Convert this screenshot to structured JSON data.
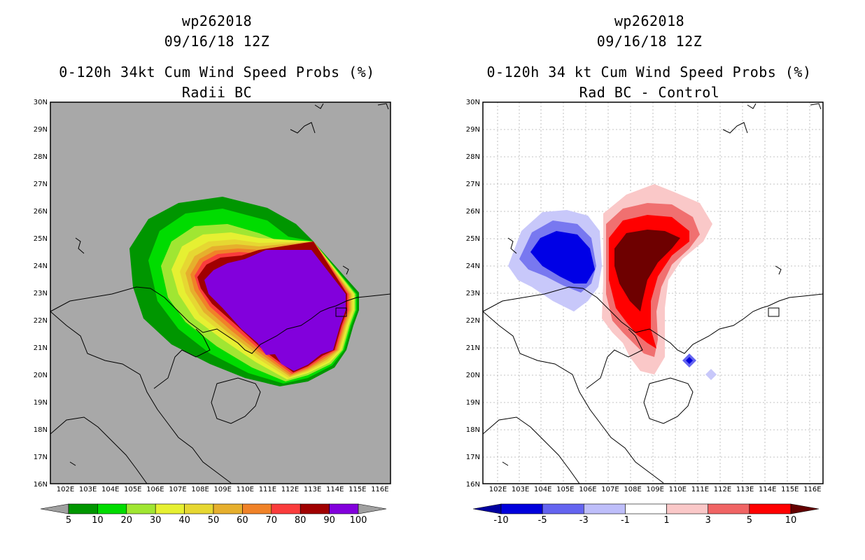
{
  "left_panel": {
    "storm_id": "wp262018",
    "datetime": "09/16/18 12Z",
    "product_title": "0-120h 34kt Cum Wind Speed Probs (%)",
    "subtitle": "Radii BC",
    "lat_labels": [
      "30N",
      "29N",
      "28N",
      "27N",
      "26N",
      "25N",
      "24N",
      "23N",
      "22N",
      "21N",
      "20N",
      "19N",
      "18N",
      "17N",
      "16N"
    ],
    "lon_labels": [
      "102E",
      "103E",
      "104E",
      "105E",
      "106E",
      "107E",
      "108E",
      "109E",
      "110E",
      "111E",
      "112E",
      "113E",
      "114E",
      "115E",
      "116E"
    ],
    "colorbar": {
      "labels": [
        "5",
        "10",
        "20",
        "30",
        "40",
        "50",
        "60",
        "70",
        "80",
        "90",
        "100"
      ],
      "colors": [
        "#009600",
        "#00dc00",
        "#a0e632",
        "#e6f032",
        "#e6d732",
        "#e6af2d",
        "#f08228",
        "#fa3c3c",
        "#a00000",
        "#8200dc"
      ],
      "under_color": "#a0a0a0",
      "over_color": "#a0a0a0"
    }
  },
  "right_panel": {
    "storm_id": "wp262018",
    "datetime": "09/16/18 12Z",
    "product_title": "0-120h 34 kt Cum Wind Speed Probs (%)",
    "subtitle": "Rad BC - Control",
    "lat_labels": [
      "30N",
      "29N",
      "28N",
      "27N",
      "26N",
      "25N",
      "24N",
      "23N",
      "22N",
      "21N",
      "20N",
      "19N",
      "18N",
      "17N",
      "16N"
    ],
    "lon_labels": [
      "102E",
      "103E",
      "104E",
      "105E",
      "106E",
      "107E",
      "108E",
      "109E",
      "110E",
      "111E",
      "112E",
      "113E",
      "114E",
      "115E",
      "116E"
    ],
    "colorbar": {
      "labels": [
        "-10",
        "-5",
        "-3",
        "-1",
        "1",
        "3",
        "5",
        "10"
      ],
      "colors": [
        "#0000dc",
        "#6464f0",
        "#bebefa",
        "#ffffff",
        "#fac8c8",
        "#f06464",
        "#ff0000"
      ],
      "under_color": "#0000a0",
      "over_color": "#640000"
    }
  },
  "colors": {
    "map_bg_left": "#a8a8a8",
    "map_bg_right": "#ffffff",
    "coast": "#000000"
  }
}
